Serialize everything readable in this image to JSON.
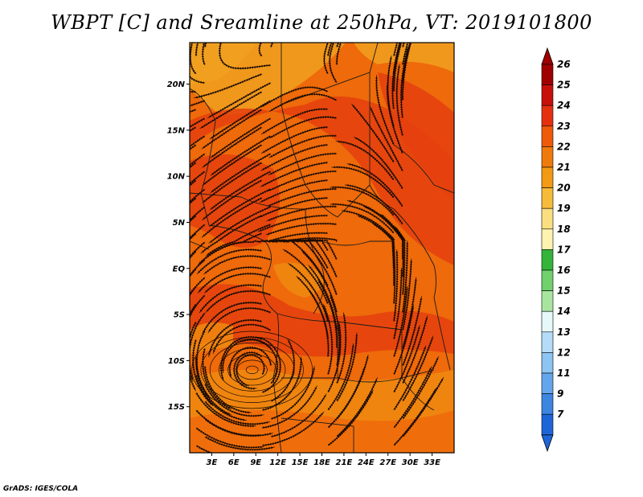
{
  "title": "WBPT [C] and Sreamline at 250hPa, VT: 2019101800",
  "credit": "GrADS: IGES/COLA",
  "map": {
    "variable": "WBPT",
    "units": "C",
    "level": "250hPa",
    "valid_time": "2019101800",
    "lon_range": [
      0,
      36
    ],
    "lat_range": [
      -20,
      24.5
    ],
    "lat_ticks": [
      {
        "value": 20,
        "label": "20N"
      },
      {
        "value": 15,
        "label": "15N"
      },
      {
        "value": 10,
        "label": "10N"
      },
      {
        "value": 5,
        "label": "5N"
      },
      {
        "value": 0,
        "label": "EQ"
      },
      {
        "value": -5,
        "label": "5S"
      },
      {
        "value": -10,
        "label": "10S"
      },
      {
        "value": -15,
        "label": "15S"
      }
    ],
    "lon_ticks": [
      {
        "value": 3,
        "label": "3E"
      },
      {
        "value": 6,
        "label": "6E"
      },
      {
        "value": 9,
        "label": "9E"
      },
      {
        "value": 12,
        "label": "12E"
      },
      {
        "value": 15,
        "label": "15E"
      },
      {
        "value": 18,
        "label": "18E"
      },
      {
        "value": 21,
        "label": "21E"
      },
      {
        "value": 24,
        "label": "24E"
      },
      {
        "value": 27,
        "label": "27E"
      },
      {
        "value": 30,
        "label": "30E"
      },
      {
        "value": 33,
        "label": "33E"
      }
    ],
    "colors": {
      "c21": "#f0a020",
      "c22": "#ef8a10",
      "c23": "#ee6a0a",
      "c24": "#e4400e",
      "border": "#1a1a1a",
      "stream": "#1a0a00"
    },
    "cyclone_center": {
      "lon": 8.5,
      "lat": -11
    }
  },
  "colorbar": {
    "levels": [
      {
        "label": "26",
        "color": "#a00000"
      },
      {
        "label": "25",
        "color": "#c8100a"
      },
      {
        "label": "24",
        "color": "#e4300e"
      },
      {
        "label": "23",
        "color": "#ee5a0a"
      },
      {
        "label": "22",
        "color": "#ef7a0c"
      },
      {
        "label": "21",
        "color": "#f39a14"
      },
      {
        "label": "20",
        "color": "#f7bb3a"
      },
      {
        "label": "19",
        "color": "#fbde80"
      },
      {
        "label": "18",
        "color": "#fff3b0"
      },
      {
        "label": "17",
        "color": "#34b43a"
      },
      {
        "label": "16",
        "color": "#6fd06c"
      },
      {
        "label": "15",
        "color": "#a8e6a0"
      },
      {
        "label": "14",
        "color": "#e6f8f8"
      },
      {
        "label": "13",
        "color": "#b4dcf8"
      },
      {
        "label": "12",
        "color": "#8cc4f2"
      },
      {
        "label": "11",
        "color": "#64a6ec"
      },
      {
        "label": "9",
        "color": "#3c86e2"
      },
      {
        "label": "7",
        "color": "#1e66d8"
      }
    ],
    "top_color": "#a00000",
    "bottom_color": "#1e66d8"
  }
}
